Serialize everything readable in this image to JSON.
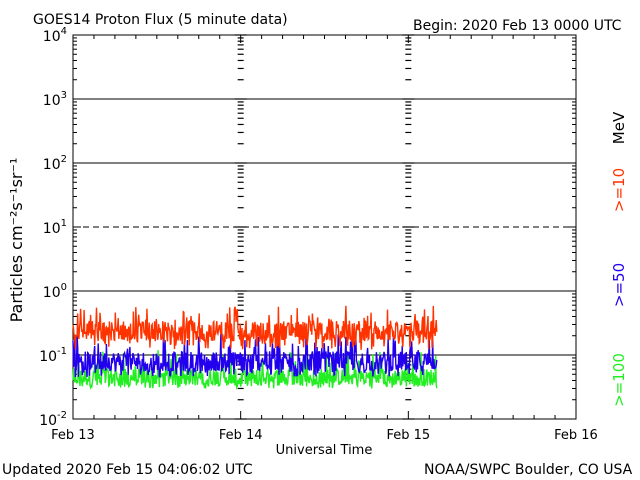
{
  "header": {
    "title": "GOES14 Proton Flux (5 minute data)",
    "begin": "Begin: 2020 Feb 13 0000 UTC"
  },
  "footer": {
    "updated": "Updated 2020 Feb 15 04:06:02 UTC",
    "credit": "NOAA/SWPC Boulder, CO USA"
  },
  "colors": {
    "ge10": "#ff3300",
    "ge50": "#2200ee",
    "ge100": "#22ee22",
    "axis": "#000000"
  },
  "chart_data": {
    "type": "line",
    "title": "GOES14 Proton Flux (5 minute data)",
    "xlabel": "Universal Time",
    "ylabel": "Particles cm⁻²s⁻¹sr⁻¹",
    "yscale": "log",
    "ylim": [
      0.01,
      10000
    ],
    "xlim": [
      0,
      3
    ],
    "x_unit": "days since 2020 Feb 13 0000 UTC",
    "x_ticks": [
      {
        "value": 0,
        "label": "Feb 13"
      },
      {
        "value": 1,
        "label": "Feb 14"
      },
      {
        "value": 2,
        "label": "Feb 15"
      },
      {
        "value": 3,
        "label": "Feb 16"
      }
    ],
    "y_ticks": [
      {
        "value": 10000,
        "base": "10",
        "exp": "4"
      },
      {
        "value": 1000,
        "base": "10",
        "exp": "3"
      },
      {
        "value": 100,
        "base": "10",
        "exp": "2"
      },
      {
        "value": 10,
        "base": "10",
        "exp": "1"
      },
      {
        "value": 1,
        "base": "10",
        "exp": "0"
      },
      {
        "value": 0.1,
        "base": "10",
        "exp": "-1"
      },
      {
        "value": 0.01,
        "base": "10",
        "exp": "-2"
      }
    ],
    "horizontal_lines": [
      {
        "value": 1000,
        "style": "solid"
      },
      {
        "value": 100,
        "style": "solid"
      },
      {
        "value": 10,
        "style": "dashed"
      },
      {
        "value": 1,
        "style": "solid"
      },
      {
        "value": 0.1,
        "style": "solid"
      }
    ],
    "day_markers": [
      1,
      2
    ],
    "legend_placement": "right (vertical labels)",
    "legend_unit": "MeV",
    "series": [
      {
        "name": ">=10",
        "color": "#ff3300",
        "x_end": 2.17,
        "typical": 0.24,
        "min": 0.12,
        "max": 0.6
      },
      {
        "name": ">=50",
        "color": "#2200ee",
        "x_end": 2.17,
        "typical": 0.08,
        "min": 0.045,
        "max": 0.22
      },
      {
        "name": ">=100",
        "color": "#22ee22",
        "x_end": 2.17,
        "typical": 0.045,
        "min": 0.03,
        "max": 0.12
      }
    ]
  }
}
